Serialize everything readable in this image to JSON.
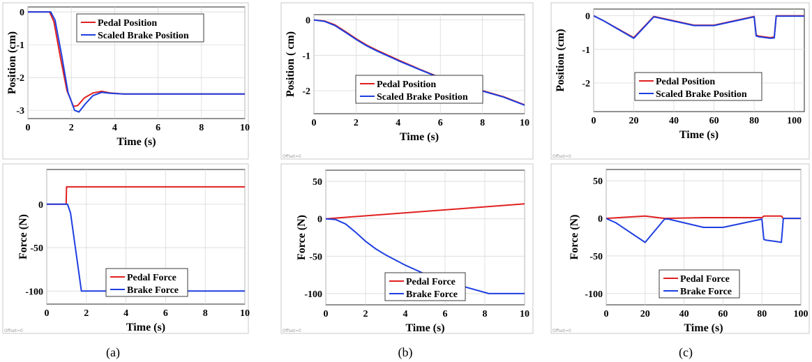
{
  "captions": [
    "(a)",
    "(b)",
    "(c)"
  ],
  "offset_text": "Offset=0",
  "colors": {
    "pedal": "#e02020",
    "brake": "#1e3fe0",
    "grid": "#d9d9d9"
  },
  "chart_data": [
    {
      "id": "a-position",
      "type": "line",
      "xlabel": "Time (s)",
      "ylabel": "Position (cm)",
      "xlim": [
        0,
        10
      ],
      "ylim": [
        -3.25,
        0.15
      ],
      "xticks": [
        0,
        2,
        4,
        6,
        8,
        10
      ],
      "yticks": [
        0,
        -1,
        -2,
        -3
      ],
      "grid": true,
      "legend_position": "top-right",
      "series": [
        {
          "name": "Pedal Position",
          "color": "#e02020",
          "x": [
            0,
            1,
            1.2,
            1.5,
            1.8,
            2.1,
            2.3,
            2.6,
            3.0,
            3.4,
            3.8,
            4.4,
            5,
            10
          ],
          "y": [
            0,
            0,
            -0.3,
            -1.4,
            -2.4,
            -2.88,
            -2.85,
            -2.62,
            -2.47,
            -2.42,
            -2.47,
            -2.5,
            -2.5,
            -2.5
          ]
        },
        {
          "name": "Scaled Brake Position",
          "color": "#1e3fe0",
          "x": [
            0,
            1.05,
            1.25,
            1.55,
            1.85,
            2.15,
            2.35,
            2.65,
            3.0,
            3.4,
            3.8,
            4.4,
            5,
            10
          ],
          "y": [
            0,
            0,
            -0.25,
            -1.3,
            -2.45,
            -3.0,
            -3.05,
            -2.8,
            -2.55,
            -2.45,
            -2.48,
            -2.5,
            -2.5,
            -2.5
          ]
        }
      ]
    },
    {
      "id": "b-position",
      "type": "line",
      "xlabel": "Time (s)",
      "ylabel": "Position ( cm)",
      "xlim": [
        0,
        10
      ],
      "ylim": [
        -2.65,
        0.15
      ],
      "xticks": [
        0,
        2,
        4,
        6,
        8,
        10
      ],
      "yticks": [
        0,
        -1,
        -2
      ],
      "grid": true,
      "legend_position": "center",
      "series": [
        {
          "name": "Pedal Position",
          "color": "#e02020",
          "x": [
            0,
            0.5,
            1,
            1.5,
            2,
            2.5,
            3,
            4,
            5,
            6,
            7,
            8,
            9,
            10
          ],
          "y": [
            0,
            -0.03,
            -0.14,
            -0.33,
            -0.53,
            -0.71,
            -0.86,
            -1.13,
            -1.39,
            -1.63,
            -1.83,
            -2.0,
            -2.17,
            -2.4
          ]
        },
        {
          "name": "Scaled Brake Position",
          "color": "#1e3fe0",
          "x": [
            0,
            0.5,
            1,
            1.5,
            2,
            2.5,
            3,
            4,
            5,
            6,
            7,
            8,
            9,
            10
          ],
          "y": [
            0,
            -0.04,
            -0.16,
            -0.35,
            -0.55,
            -0.73,
            -0.88,
            -1.15,
            -1.4,
            -1.64,
            -1.84,
            -2.01,
            -2.18,
            -2.41
          ]
        }
      ]
    },
    {
      "id": "c-position",
      "type": "line",
      "xlabel": "Time (s)",
      "ylabel": "Position (cm)",
      "xlim": [
        0,
        105
      ],
      "ylim": [
        -2.85,
        0.2
      ],
      "xticks": [
        0,
        20,
        40,
        60,
        80,
        100
      ],
      "yticks": [
        0,
        -1,
        -2
      ],
      "grid": true,
      "legend_position": "center",
      "series": [
        {
          "name": "Pedal Position",
          "color": "#e02020",
          "x": [
            0,
            5,
            20,
            30,
            50,
            60,
            80,
            81,
            82,
            88,
            90,
            91,
            100,
            105
          ],
          "y": [
            0,
            -0.15,
            -0.65,
            -0.02,
            -0.28,
            -0.28,
            -0.02,
            -0.57,
            -0.6,
            -0.65,
            -0.63,
            0,
            0,
            0
          ]
        },
        {
          "name": "Scaled Brake Position",
          "color": "#1e3fe0",
          "x": [
            0,
            5,
            20,
            30,
            50,
            60,
            80,
            81,
            82,
            88,
            90,
            91,
            100,
            105
          ],
          "y": [
            0,
            -0.15,
            -0.67,
            -0.03,
            -0.29,
            -0.29,
            -0.03,
            -0.6,
            -0.62,
            -0.67,
            -0.66,
            -0.01,
            -0.01,
            -0.01
          ]
        }
      ]
    },
    {
      "id": "a-force",
      "type": "line",
      "xlabel": "Time (s)",
      "ylabel": "Force (N)",
      "xlim": [
        0,
        10
      ],
      "ylim": [
        -115,
        40
      ],
      "xticks": [
        0,
        2,
        4,
        6,
        8,
        10
      ],
      "yticks": [
        0,
        -50,
        -100
      ],
      "grid": true,
      "legend_position": "bottom-center",
      "series": [
        {
          "name": "Pedal Force",
          "color": "#e02020",
          "x": [
            0,
            0.98,
            1.0,
            10
          ],
          "y": [
            0,
            0,
            20,
            20
          ]
        },
        {
          "name": "Brake Force",
          "color": "#1e3fe0",
          "x": [
            0,
            1.05,
            1.2,
            1.75,
            10
          ],
          "y": [
            0,
            0,
            -10,
            -100,
            -100
          ]
        }
      ]
    },
    {
      "id": "b-force",
      "type": "line",
      "xlabel": "Time (s)",
      "ylabel": "Force (N)",
      "xlim": [
        0,
        10
      ],
      "ylim": [
        -115,
        65
      ],
      "xticks": [
        0,
        2,
        4,
        6,
        8,
        10
      ],
      "yticks": [
        50,
        0,
        -50,
        -100
      ],
      "grid": true,
      "legend_position": "bottom-center",
      "series": [
        {
          "name": "Pedal Force",
          "color": "#e02020",
          "x": [
            0,
            10
          ],
          "y": [
            0,
            20
          ]
        },
        {
          "name": "Brake Force",
          "color": "#1e3fe0",
          "x": [
            0,
            0.5,
            1,
            1.5,
            2,
            2.5,
            3,
            4,
            5,
            6,
            7,
            8.2,
            10
          ],
          "y": [
            0,
            -1,
            -7,
            -18,
            -30,
            -40,
            -48,
            -62,
            -74,
            -83,
            -91,
            -100,
            -100
          ]
        }
      ]
    },
    {
      "id": "c-force",
      "type": "line",
      "xlabel": "Time (s)",
      "ylabel": "Force (N)",
      "xlim": [
        0,
        100
      ],
      "ylim": [
        -115,
        65
      ],
      "xticks": [
        0,
        20,
        40,
        60,
        80,
        100
      ],
      "yticks": [
        50,
        0,
        -50,
        -100
      ],
      "grid": true,
      "legend_position": "bottom-center",
      "series": [
        {
          "name": "Pedal Force",
          "color": "#e02020",
          "x": [
            0,
            20,
            30,
            50,
            60,
            80,
            81,
            90,
            91,
            100
          ],
          "y": [
            0,
            3,
            0,
            1,
            1,
            1,
            3,
            3,
            0,
            0
          ]
        },
        {
          "name": "Brake Force",
          "color": "#1e3fe0",
          "x": [
            0,
            5,
            20,
            30,
            32,
            50,
            60,
            80,
            81,
            82,
            88,
            90,
            91,
            100
          ],
          "y": [
            0,
            -6,
            -32,
            -1,
            -1,
            -12,
            -12,
            -1,
            -28,
            -29,
            -31,
            -32,
            0,
            0
          ]
        }
      ]
    }
  ]
}
